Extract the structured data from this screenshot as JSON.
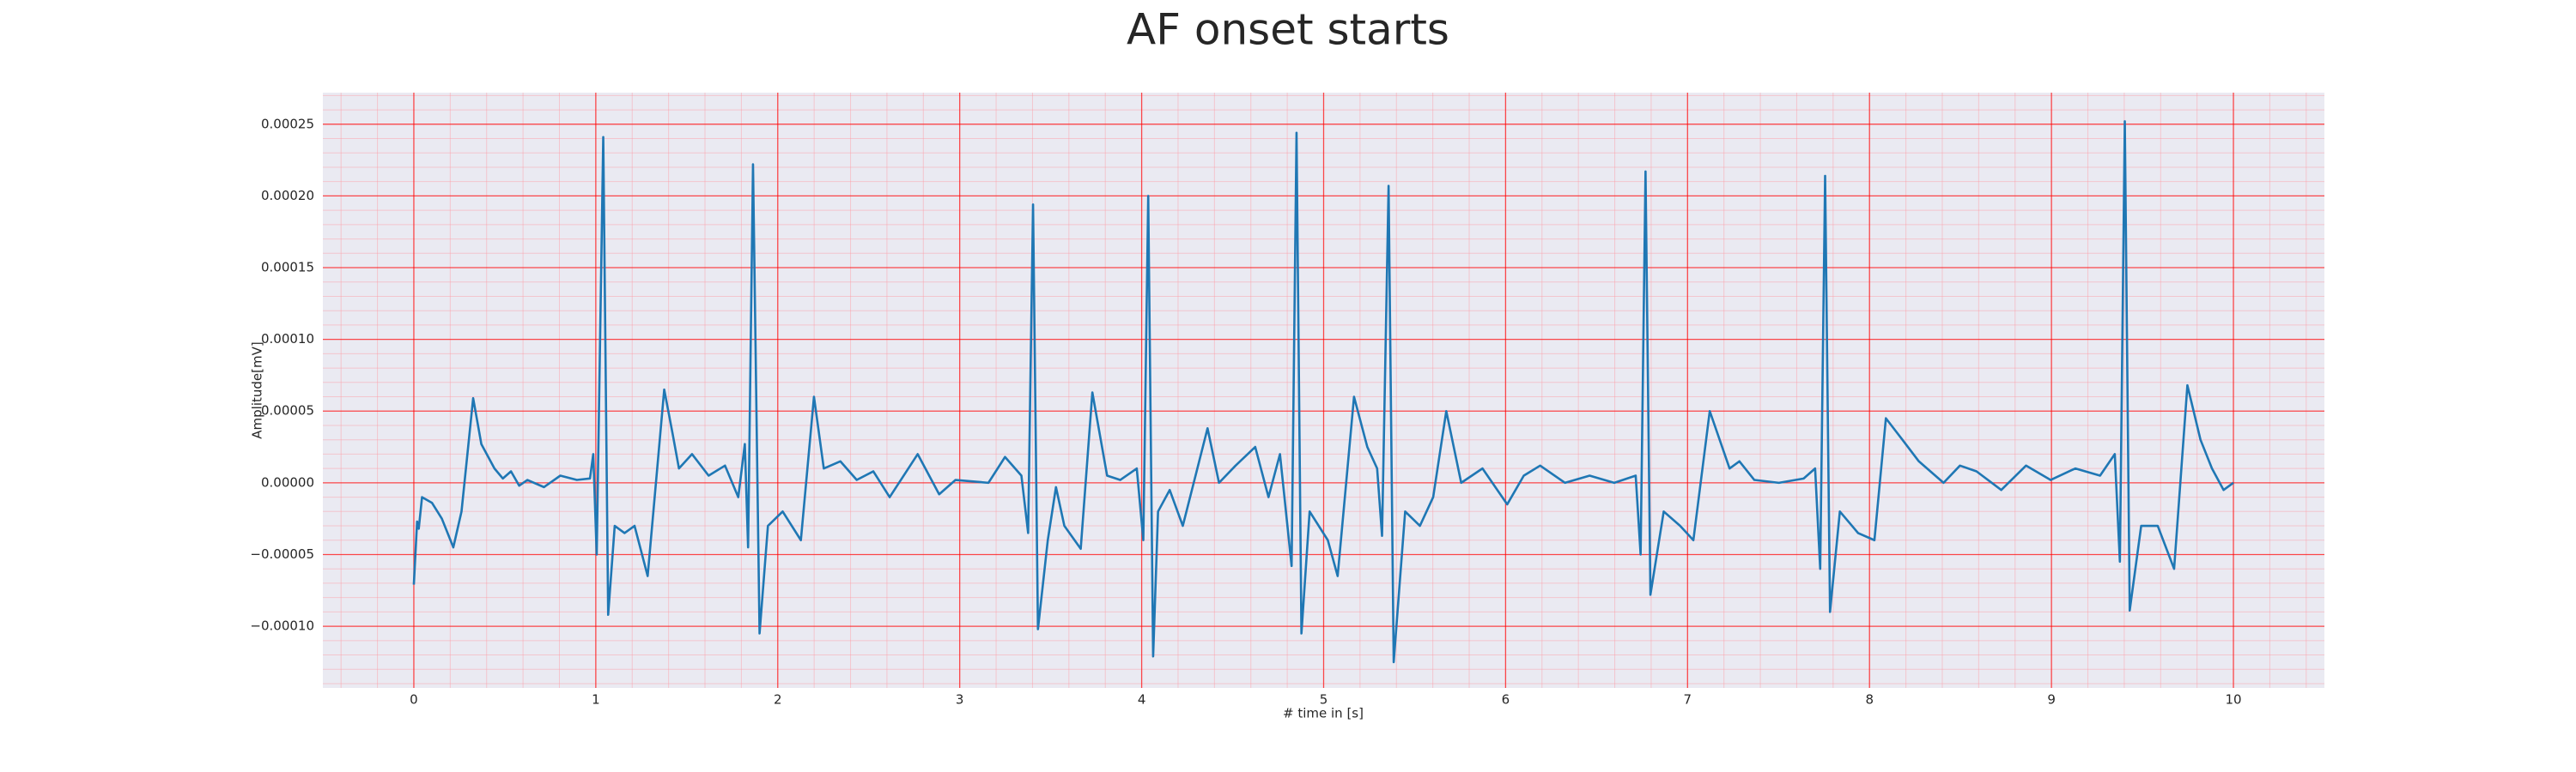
{
  "chart_data": {
    "type": "line",
    "title": "AF onset starts",
    "x_label": "# time in [s]",
    "y_label": "Amplitude[mV]",
    "color": "#1f77b4",
    "grid": true,
    "x": [
      0,
      0.018,
      0.027,
      0.045,
      0.1,
      0.154,
      0.217,
      0.262,
      0.326,
      0.371,
      0.443,
      0.489,
      0.534,
      0.579,
      0.624,
      0.715,
      0.805,
      0.896,
      0.968,
      0.986,
      1.005,
      1.041,
      1.068,
      1.104,
      1.158,
      1.213,
      1.285,
      1.376,
      1.421,
      1.457,
      1.529,
      1.62,
      1.71,
      1.783,
      1.819,
      1.837,
      1.864,
      1.9,
      1.946,
      2.027,
      2.127,
      2.199,
      2.253,
      2.344,
      2.434,
      2.525,
      2.615,
      2.769,
      2.887,
      2.977,
      3.158,
      3.249,
      3.339,
      3.376,
      3.403,
      3.43,
      3.484,
      3.529,
      3.575,
      3.665,
      3.729,
      3.81,
      3.882,
      3.973,
      4.009,
      4.036,
      4.063,
      4.09,
      4.154,
      4.226,
      4.362,
      4.425,
      4.516,
      4.624,
      4.697,
      4.76,
      4.824,
      4.851,
      4.878,
      4.923,
      5.023,
      5.077,
      5.167,
      5.24,
      5.294,
      5.321,
      5.357,
      5.385,
      5.448,
      5.529,
      5.602,
      5.674,
      5.756,
      5.873,
      6.009,
      6.1,
      6.19,
      6.326,
      6.462,
      6.597,
      6.715,
      6.742,
      6.769,
      6.796,
      6.869,
      6.959,
      7.032,
      7.122,
      7.231,
      7.285,
      7.367,
      7.502,
      7.638,
      7.701,
      7.729,
      7.756,
      7.783,
      7.837,
      7.937,
      8.027,
      8.09,
      8.181,
      8.271,
      8.407,
      8.497,
      8.588,
      8.724,
      8.86,
      8.995,
      9.131,
      9.267,
      9.348,
      9.376,
      9.403,
      9.43,
      9.493,
      9.584,
      9.674,
      9.747,
      9.819,
      9.882,
      9.946,
      10.0
    ],
    "values": [
      -7.1e-05,
      -2.7e-05,
      -3.2e-05,
      -1e-05,
      -1.4e-05,
      -2.5e-05,
      -4.5e-05,
      -2e-05,
      5.9e-05,
      2.7e-05,
      1e-05,
      3e-06,
      8e-06,
      -2e-06,
      2e-06,
      -3e-06,
      5e-06,
      2e-06,
      3e-06,
      2e-05,
      -5e-05,
      0.000241,
      -9.2e-05,
      -3e-05,
      -3.5e-05,
      -3e-05,
      -6.5e-05,
      6.5e-05,
      3.5e-05,
      1e-05,
      2e-05,
      5e-06,
      1.2e-05,
      -1e-05,
      2.7e-05,
      -4.5e-05,
      0.000222,
      -0.000105,
      -3e-05,
      -2e-05,
      -4e-05,
      6e-05,
      1e-05,
      1.5e-05,
      2e-06,
      8e-06,
      -1e-05,
      2e-05,
      -8e-06,
      2e-06,
      0,
      1.8e-05,
      5e-06,
      -3.5e-05,
      0.000194,
      -0.000102,
      -4e-05,
      -3e-06,
      -3e-05,
      -4.6e-05,
      6.3e-05,
      5e-06,
      2e-06,
      1e-05,
      -4e-05,
      0.0002,
      -0.000121,
      -2e-05,
      -5e-06,
      -3e-05,
      3.8e-05,
      0,
      1.2e-05,
      2.5e-05,
      -1e-05,
      2e-05,
      -5.8e-05,
      0.000244,
      -0.000105,
      -2e-05,
      -4e-05,
      -6.5e-05,
      6e-05,
      2.5e-05,
      1e-05,
      -3.7e-05,
      0.000207,
      -0.000125,
      -2e-05,
      -3e-05,
      -1e-05,
      5e-05,
      0,
      1e-05,
      -1.5e-05,
      5e-06,
      1.2e-05,
      0,
      5e-06,
      0,
      5e-06,
      -5e-05,
      0.000217,
      -7.8e-05,
      -2e-05,
      -3e-05,
      -4e-05,
      5e-05,
      1e-05,
      1.5e-05,
      2e-06,
      0,
      3e-06,
      1e-05,
      -6e-05,
      0.000214,
      -9e-05,
      -2e-05,
      -3.5e-05,
      -4e-05,
      4.5e-05,
      3e-05,
      1.5e-05,
      0,
      1.2e-05,
      8e-06,
      -5e-06,
      1.2e-05,
      2e-06,
      1e-05,
      5e-06,
      2e-05,
      -5.5e-05,
      0.000252,
      -8.9e-05,
      -3e-05,
      -3e-05,
      -6e-05,
      6.8e-05,
      3e-05,
      1e-05,
      -5e-06,
      0
    ],
    "xlim": [
      -0.5,
      10.5
    ],
    "ylim": [
      -0.000143,
      0.000272
    ],
    "xticks": [
      0,
      1,
      2,
      3,
      4,
      5,
      6,
      7,
      8,
      9,
      10
    ],
    "yticks": [
      {
        "value": -0.0001,
        "label": "−0.00010"
      },
      {
        "value": -5e-05,
        "label": "−0.00005"
      },
      {
        "value": 0,
        "label": "0.00000"
      },
      {
        "value": 5e-05,
        "label": "0.00005"
      },
      {
        "value": 0.0001,
        "label": "0.00010"
      },
      {
        "value": 0.00015,
        "label": "0.00015"
      },
      {
        "value": 0.0002,
        "label": "0.00020"
      },
      {
        "value": 0.00025,
        "label": "0.00025"
      }
    ]
  }
}
